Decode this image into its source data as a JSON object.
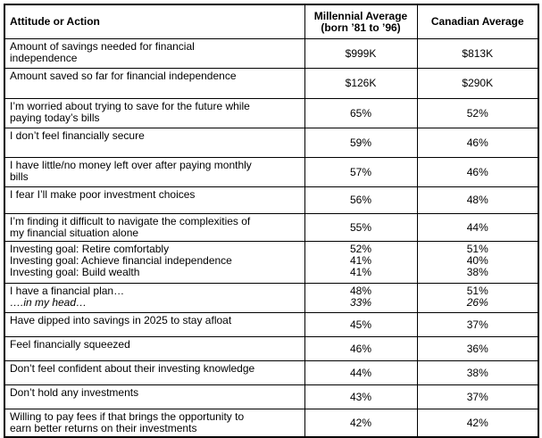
{
  "table": {
    "header": {
      "attitude": "Attitude or Action",
      "millennial": [
        "Millennial Average",
        "(born ’81 to ’96)"
      ],
      "canadian": [
        "Canadian Average"
      ]
    },
    "rows": [
      {
        "label": [
          {
            "text": "Amount of savings needed for financial"
          },
          {
            "text": "independence"
          }
        ],
        "millennial": [
          {
            "text": "$999K"
          }
        ],
        "canadian": [
          {
            "text": "$813K"
          }
        ]
      },
      {
        "label": [
          {
            "text": "Amount saved so far for financial independence"
          }
        ],
        "millennial": [
          {
            "text": "$126K"
          }
        ],
        "canadian": [
          {
            "text": "$290K"
          }
        ]
      },
      {
        "label": [
          {
            "text": "I’m worried about trying to save for the future while"
          },
          {
            "text": "paying today’s bills"
          }
        ],
        "millennial": [
          {
            "text": "65%"
          }
        ],
        "canadian": [
          {
            "text": "52%"
          }
        ]
      },
      {
        "label": [
          {
            "text": "I don’t feel financially secure"
          }
        ],
        "millennial": [
          {
            "text": "59%"
          }
        ],
        "canadian": [
          {
            "text": "46%"
          }
        ]
      },
      {
        "label": [
          {
            "text": "I have little/no money left over after paying monthly"
          },
          {
            "text": "bills"
          }
        ],
        "millennial": [
          {
            "text": "57%"
          }
        ],
        "canadian": [
          {
            "text": "46%"
          }
        ]
      },
      {
        "label": [
          {
            "text": "I fear I’ll make poor investment choices"
          }
        ],
        "millennial": [
          {
            "text": "56%"
          }
        ],
        "canadian": [
          {
            "text": "48%"
          }
        ]
      },
      {
        "label": [
          {
            "text": "I’m finding it difficult to navigate the complexities of"
          },
          {
            "text": "my financial situation alone"
          }
        ],
        "millennial": [
          {
            "text": "55%"
          }
        ],
        "canadian": [
          {
            "text": "44%"
          }
        ]
      },
      {
        "label": [
          {
            "text": "Investing goal: Retire comfortably"
          },
          {
            "text": "Investing goal: Achieve financial independence"
          },
          {
            "text": "Investing goal: Build wealth"
          }
        ],
        "millennial": [
          {
            "text": "52%"
          },
          {
            "text": "41%"
          },
          {
            "text": "41%"
          }
        ],
        "canadian": [
          {
            "text": "51%"
          },
          {
            "text": "40%"
          },
          {
            "text": "38%"
          }
        ]
      },
      {
        "label": [
          {
            "text": "I have a financial plan…"
          },
          {
            "text": "….in my head…",
            "italic": true
          }
        ],
        "millennial": [
          {
            "text": "48%"
          },
          {
            "text": "33%",
            "italic": true
          }
        ],
        "canadian": [
          {
            "text": "51%"
          },
          {
            "text": "26%",
            "italic": true
          }
        ]
      },
      {
        "label": [
          {
            "text": "Have dipped into savings in 2025 to stay afloat"
          }
        ],
        "millennial": [
          {
            "text": "45%"
          }
        ],
        "canadian": [
          {
            "text": "37%"
          }
        ]
      },
      {
        "label": [
          {
            "text": "Feel financially squeezed"
          }
        ],
        "millennial": [
          {
            "text": "46%"
          }
        ],
        "canadian": [
          {
            "text": "36%"
          }
        ]
      },
      {
        "label": [
          {
            "text": "Don’t feel confident about their investing knowledge"
          }
        ],
        "millennial": [
          {
            "text": "44%"
          }
        ],
        "canadian": [
          {
            "text": "38%"
          }
        ]
      },
      {
        "label": [
          {
            "text": "Don’t hold any investments"
          }
        ],
        "millennial": [
          {
            "text": "43%"
          }
        ],
        "canadian": [
          {
            "text": "37%"
          }
        ]
      },
      {
        "label": [
          {
            "text": "Willing to pay fees if that brings the opportunity to"
          },
          {
            "text": "earn better returns on their investments"
          }
        ],
        "millennial": [
          {
            "text": "42%"
          }
        ],
        "canadian": [
          {
            "text": "42%"
          }
        ]
      }
    ]
  },
  "chart_data": {
    "type": "table",
    "title": "Attitude or Action",
    "categories": [
      "Amount of savings needed for financial independence",
      "Amount saved so far for financial independence",
      "I’m worried about trying to save for the future while paying today’s bills",
      "I don’t feel financially secure",
      "I have little/no money left over after paying monthly bills",
      "I fear I’ll make poor investment choices",
      "I’m finding it difficult to navigate the complexities of my financial situation alone",
      "Investing goal: Retire comfortably",
      "Investing goal: Achieve financial independence",
      "Investing goal: Build wealth",
      "I have a financial plan…",
      "….in my head…",
      "Have dipped into savings in 2025 to stay afloat",
      "Feel financially squeezed",
      "Don’t feel confident about their investing knowledge",
      "Don’t hold any investments",
      "Willing to pay fees if that brings the opportunity to earn better returns on their investments"
    ],
    "series": [
      {
        "name": "Millennial Average (born ’81 to ’96)",
        "values": [
          "$999K",
          "$126K",
          "65%",
          "59%",
          "57%",
          "56%",
          "55%",
          "52%",
          "41%",
          "41%",
          "48%",
          "33%",
          "45%",
          "46%",
          "44%",
          "43%",
          "42%"
        ]
      },
      {
        "name": "Canadian Average",
        "values": [
          "$813K",
          "$290K",
          "52%",
          "46%",
          "46%",
          "48%",
          "44%",
          "51%",
          "40%",
          "38%",
          "51%",
          "26%",
          "37%",
          "36%",
          "38%",
          "37%",
          "42%"
        ]
      }
    ]
  }
}
